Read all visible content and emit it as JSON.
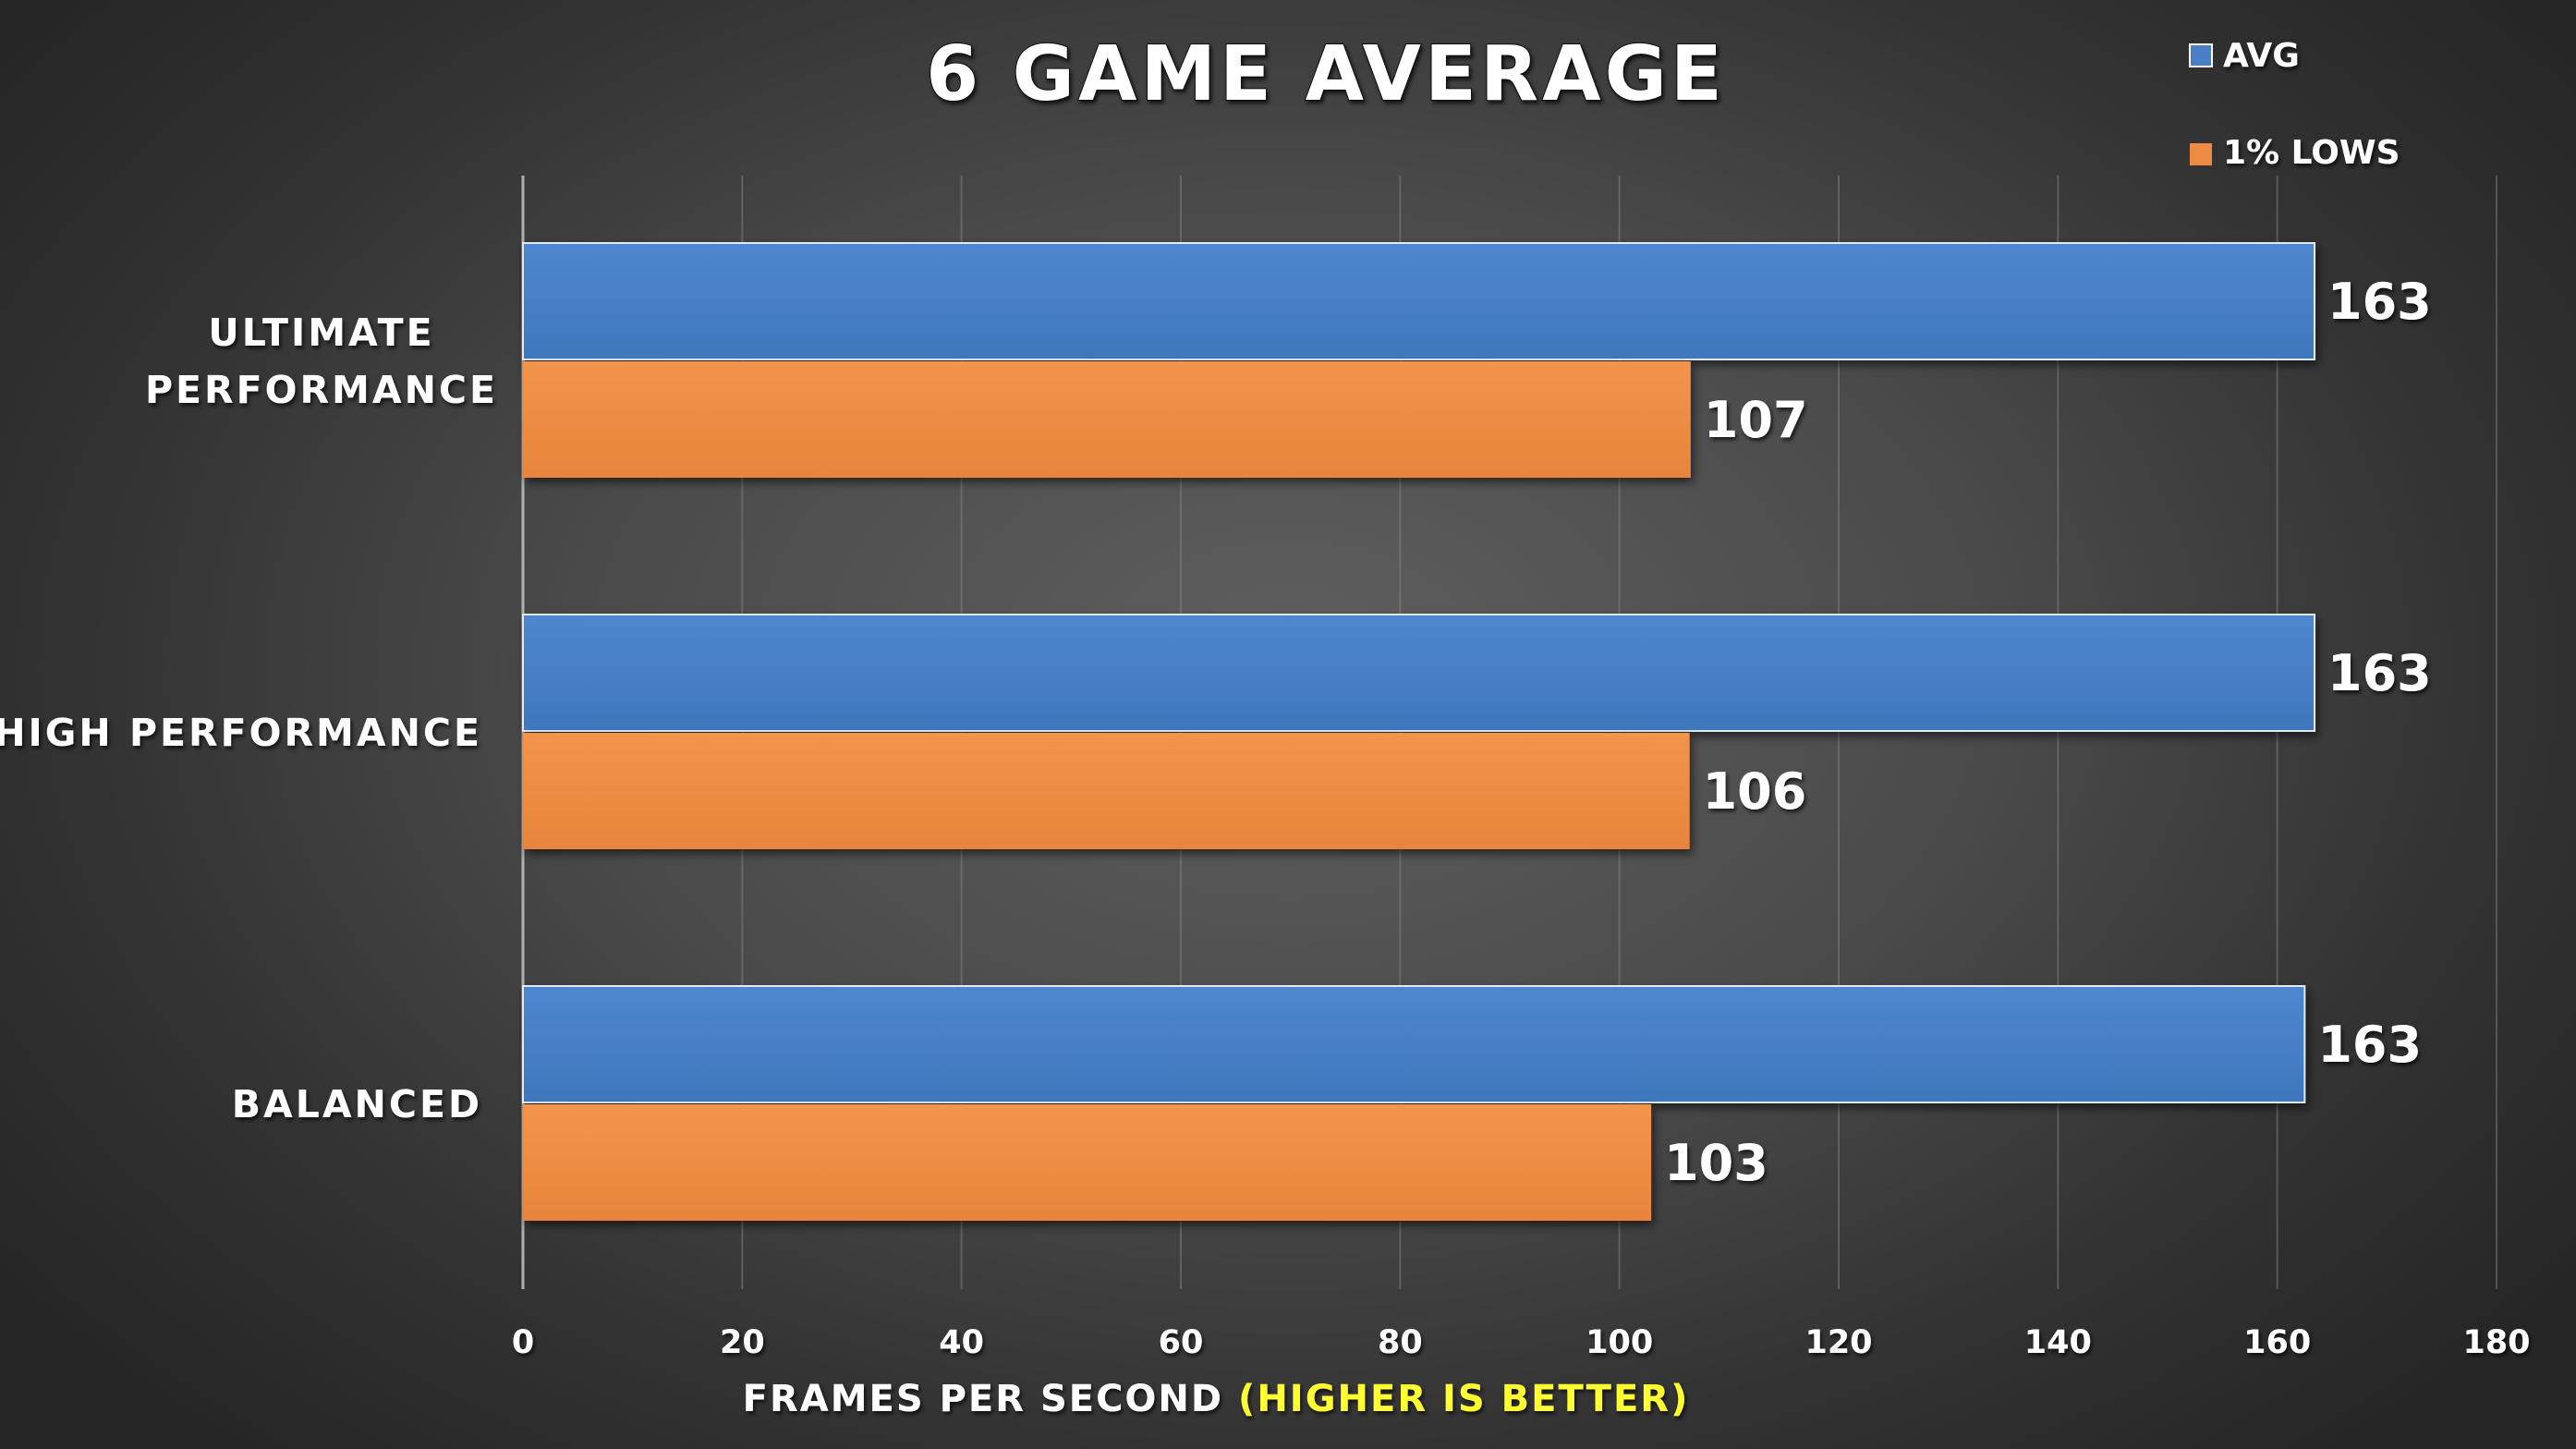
{
  "chart_data": {
    "type": "bar",
    "orientation": "horizontal",
    "title": "6 GAME AVERAGE",
    "xlabel": "FRAMES PER SECOND",
    "xlabel_highlight": "(HIGHER IS BETTER)",
    "ylabel": "",
    "categories": [
      [
        "ULTIMATE",
        "PERFORMANCE"
      ],
      [
        "HIGH PERFORMANCE"
      ],
      [
        "BALANCED"
      ]
    ],
    "series": [
      {
        "name": "AVG",
        "color": "#4a7fc5",
        "values": [
          163,
          163,
          163
        ],
        "bar_values": [
          163.4,
          163.4,
          162.5
        ]
      },
      {
        "name": "1% LOWS",
        "color": "#ec8b44",
        "values": [
          107,
          106,
          103
        ],
        "bar_values": [
          106.5,
          106.4,
          102.9
        ]
      }
    ],
    "xlim": [
      0,
      180
    ],
    "xticks": [
      0,
      20,
      40,
      60,
      80,
      100,
      120,
      140,
      160,
      180
    ],
    "grid": true,
    "legend": "top-right"
  }
}
